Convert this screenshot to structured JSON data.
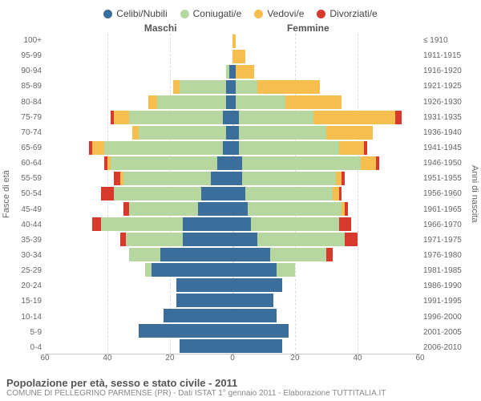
{
  "legend": {
    "items": [
      {
        "label": "Celibi/Nubili",
        "color": "#3b6e9a"
      },
      {
        "label": "Coniugati/e",
        "color": "#b6d7a0"
      },
      {
        "label": "Vedovi/e",
        "color": "#f6bd4f"
      },
      {
        "label": "Divorziati/e",
        "color": "#d73a2d"
      }
    ]
  },
  "headers": {
    "male": "Maschi",
    "female": "Femmine"
  },
  "axis_titles": {
    "left": "Fasce di età",
    "right": "Anni di nascita"
  },
  "title": "Popolazione per età, sesso e stato civile - 2011",
  "subtitle": "COMUNE DI PELLEGRINO PARMENSE (PR) - Dati ISTAT 1° gennaio 2011 - Elaborazione TUTTITALIA.IT",
  "colors": {
    "single": "#3b6e9a",
    "married": "#b6d7a0",
    "widowed": "#f6bd4f",
    "divorced": "#d73a2d",
    "grid": "#dddddd",
    "bg": "#ffffff"
  },
  "xmax": 60,
  "xticks": [
    60,
    40,
    20,
    0,
    20,
    40,
    60
  ],
  "age_labels": [
    "100+",
    "95-99",
    "90-94",
    "85-89",
    "80-84",
    "75-79",
    "70-74",
    "65-69",
    "60-64",
    "55-59",
    "50-54",
    "45-49",
    "40-44",
    "35-39",
    "30-34",
    "25-29",
    "20-24",
    "15-19",
    "10-14",
    "5-9",
    "0-4"
  ],
  "birth_labels": [
    "≤ 1910",
    "1911-1915",
    "1916-1920",
    "1921-1925",
    "1926-1930",
    "1931-1935",
    "1936-1940",
    "1941-1945",
    "1946-1950",
    "1951-1955",
    "1956-1960",
    "1961-1965",
    "1966-1970",
    "1971-1975",
    "1976-1980",
    "1981-1985",
    "1986-1990",
    "1991-1995",
    "1996-2000",
    "2001-2005",
    "2006-2010"
  ],
  "rows": [
    {
      "m": {
        "s": 0,
        "c": 0,
        "w": 0,
        "d": 0
      },
      "f": {
        "s": 0,
        "c": 0,
        "w": 1,
        "d": 0
      }
    },
    {
      "m": {
        "s": 0,
        "c": 0,
        "w": 0,
        "d": 0
      },
      "f": {
        "s": 0,
        "c": 0,
        "w": 4,
        "d": 0
      }
    },
    {
      "m": {
        "s": 1,
        "c": 1,
        "w": 0,
        "d": 0
      },
      "f": {
        "s": 1,
        "c": 0,
        "w": 6,
        "d": 0
      }
    },
    {
      "m": {
        "s": 2,
        "c": 15,
        "w": 2,
        "d": 0
      },
      "f": {
        "s": 1,
        "c": 7,
        "w": 20,
        "d": 0
      }
    },
    {
      "m": {
        "s": 2,
        "c": 22,
        "w": 3,
        "d": 0
      },
      "f": {
        "s": 1,
        "c": 16,
        "w": 18,
        "d": 0
      }
    },
    {
      "m": {
        "s": 3,
        "c": 30,
        "w": 5,
        "d": 1
      },
      "f": {
        "s": 2,
        "c": 24,
        "w": 26,
        "d": 2
      }
    },
    {
      "m": {
        "s": 2,
        "c": 28,
        "w": 2,
        "d": 0
      },
      "f": {
        "s": 2,
        "c": 28,
        "w": 15,
        "d": 0
      }
    },
    {
      "m": {
        "s": 3,
        "c": 38,
        "w": 4,
        "d": 1
      },
      "f": {
        "s": 2,
        "c": 32,
        "w": 8,
        "d": 1
      }
    },
    {
      "m": {
        "s": 5,
        "c": 34,
        "w": 1,
        "d": 1
      },
      "f": {
        "s": 3,
        "c": 38,
        "w": 5,
        "d": 1
      }
    },
    {
      "m": {
        "s": 7,
        "c": 28,
        "w": 1,
        "d": 2
      },
      "f": {
        "s": 3,
        "c": 30,
        "w": 2,
        "d": 1
      }
    },
    {
      "m": {
        "s": 10,
        "c": 28,
        "w": 0,
        "d": 4
      },
      "f": {
        "s": 4,
        "c": 28,
        "w": 2,
        "d": 1
      }
    },
    {
      "m": {
        "s": 11,
        "c": 22,
        "w": 0,
        "d": 2
      },
      "f": {
        "s": 5,
        "c": 30,
        "w": 1,
        "d": 1
      }
    },
    {
      "m": {
        "s": 16,
        "c": 26,
        "w": 0,
        "d": 3
      },
      "f": {
        "s": 6,
        "c": 28,
        "w": 0,
        "d": 4
      }
    },
    {
      "m": {
        "s": 16,
        "c": 18,
        "w": 0,
        "d": 2
      },
      "f": {
        "s": 8,
        "c": 28,
        "w": 0,
        "d": 4
      }
    },
    {
      "m": {
        "s": 23,
        "c": 10,
        "w": 0,
        "d": 0
      },
      "f": {
        "s": 12,
        "c": 18,
        "w": 0,
        "d": 2
      }
    },
    {
      "m": {
        "s": 26,
        "c": 2,
        "w": 0,
        "d": 0
      },
      "f": {
        "s": 14,
        "c": 6,
        "w": 0,
        "d": 0
      }
    },
    {
      "m": {
        "s": 18,
        "c": 0,
        "w": 0,
        "d": 0
      },
      "f": {
        "s": 16,
        "c": 0,
        "w": 0,
        "d": 0
      }
    },
    {
      "m": {
        "s": 18,
        "c": 0,
        "w": 0,
        "d": 0
      },
      "f": {
        "s": 13,
        "c": 0,
        "w": 0,
        "d": 0
      }
    },
    {
      "m": {
        "s": 22,
        "c": 0,
        "w": 0,
        "d": 0
      },
      "f": {
        "s": 14,
        "c": 0,
        "w": 0,
        "d": 0
      }
    },
    {
      "m": {
        "s": 30,
        "c": 0,
        "w": 0,
        "d": 0
      },
      "f": {
        "s": 18,
        "c": 0,
        "w": 0,
        "d": 0
      }
    },
    {
      "m": {
        "s": 17,
        "c": 0,
        "w": 0,
        "d": 0
      },
      "f": {
        "s": 16,
        "c": 0,
        "w": 0,
        "d": 0
      }
    }
  ]
}
